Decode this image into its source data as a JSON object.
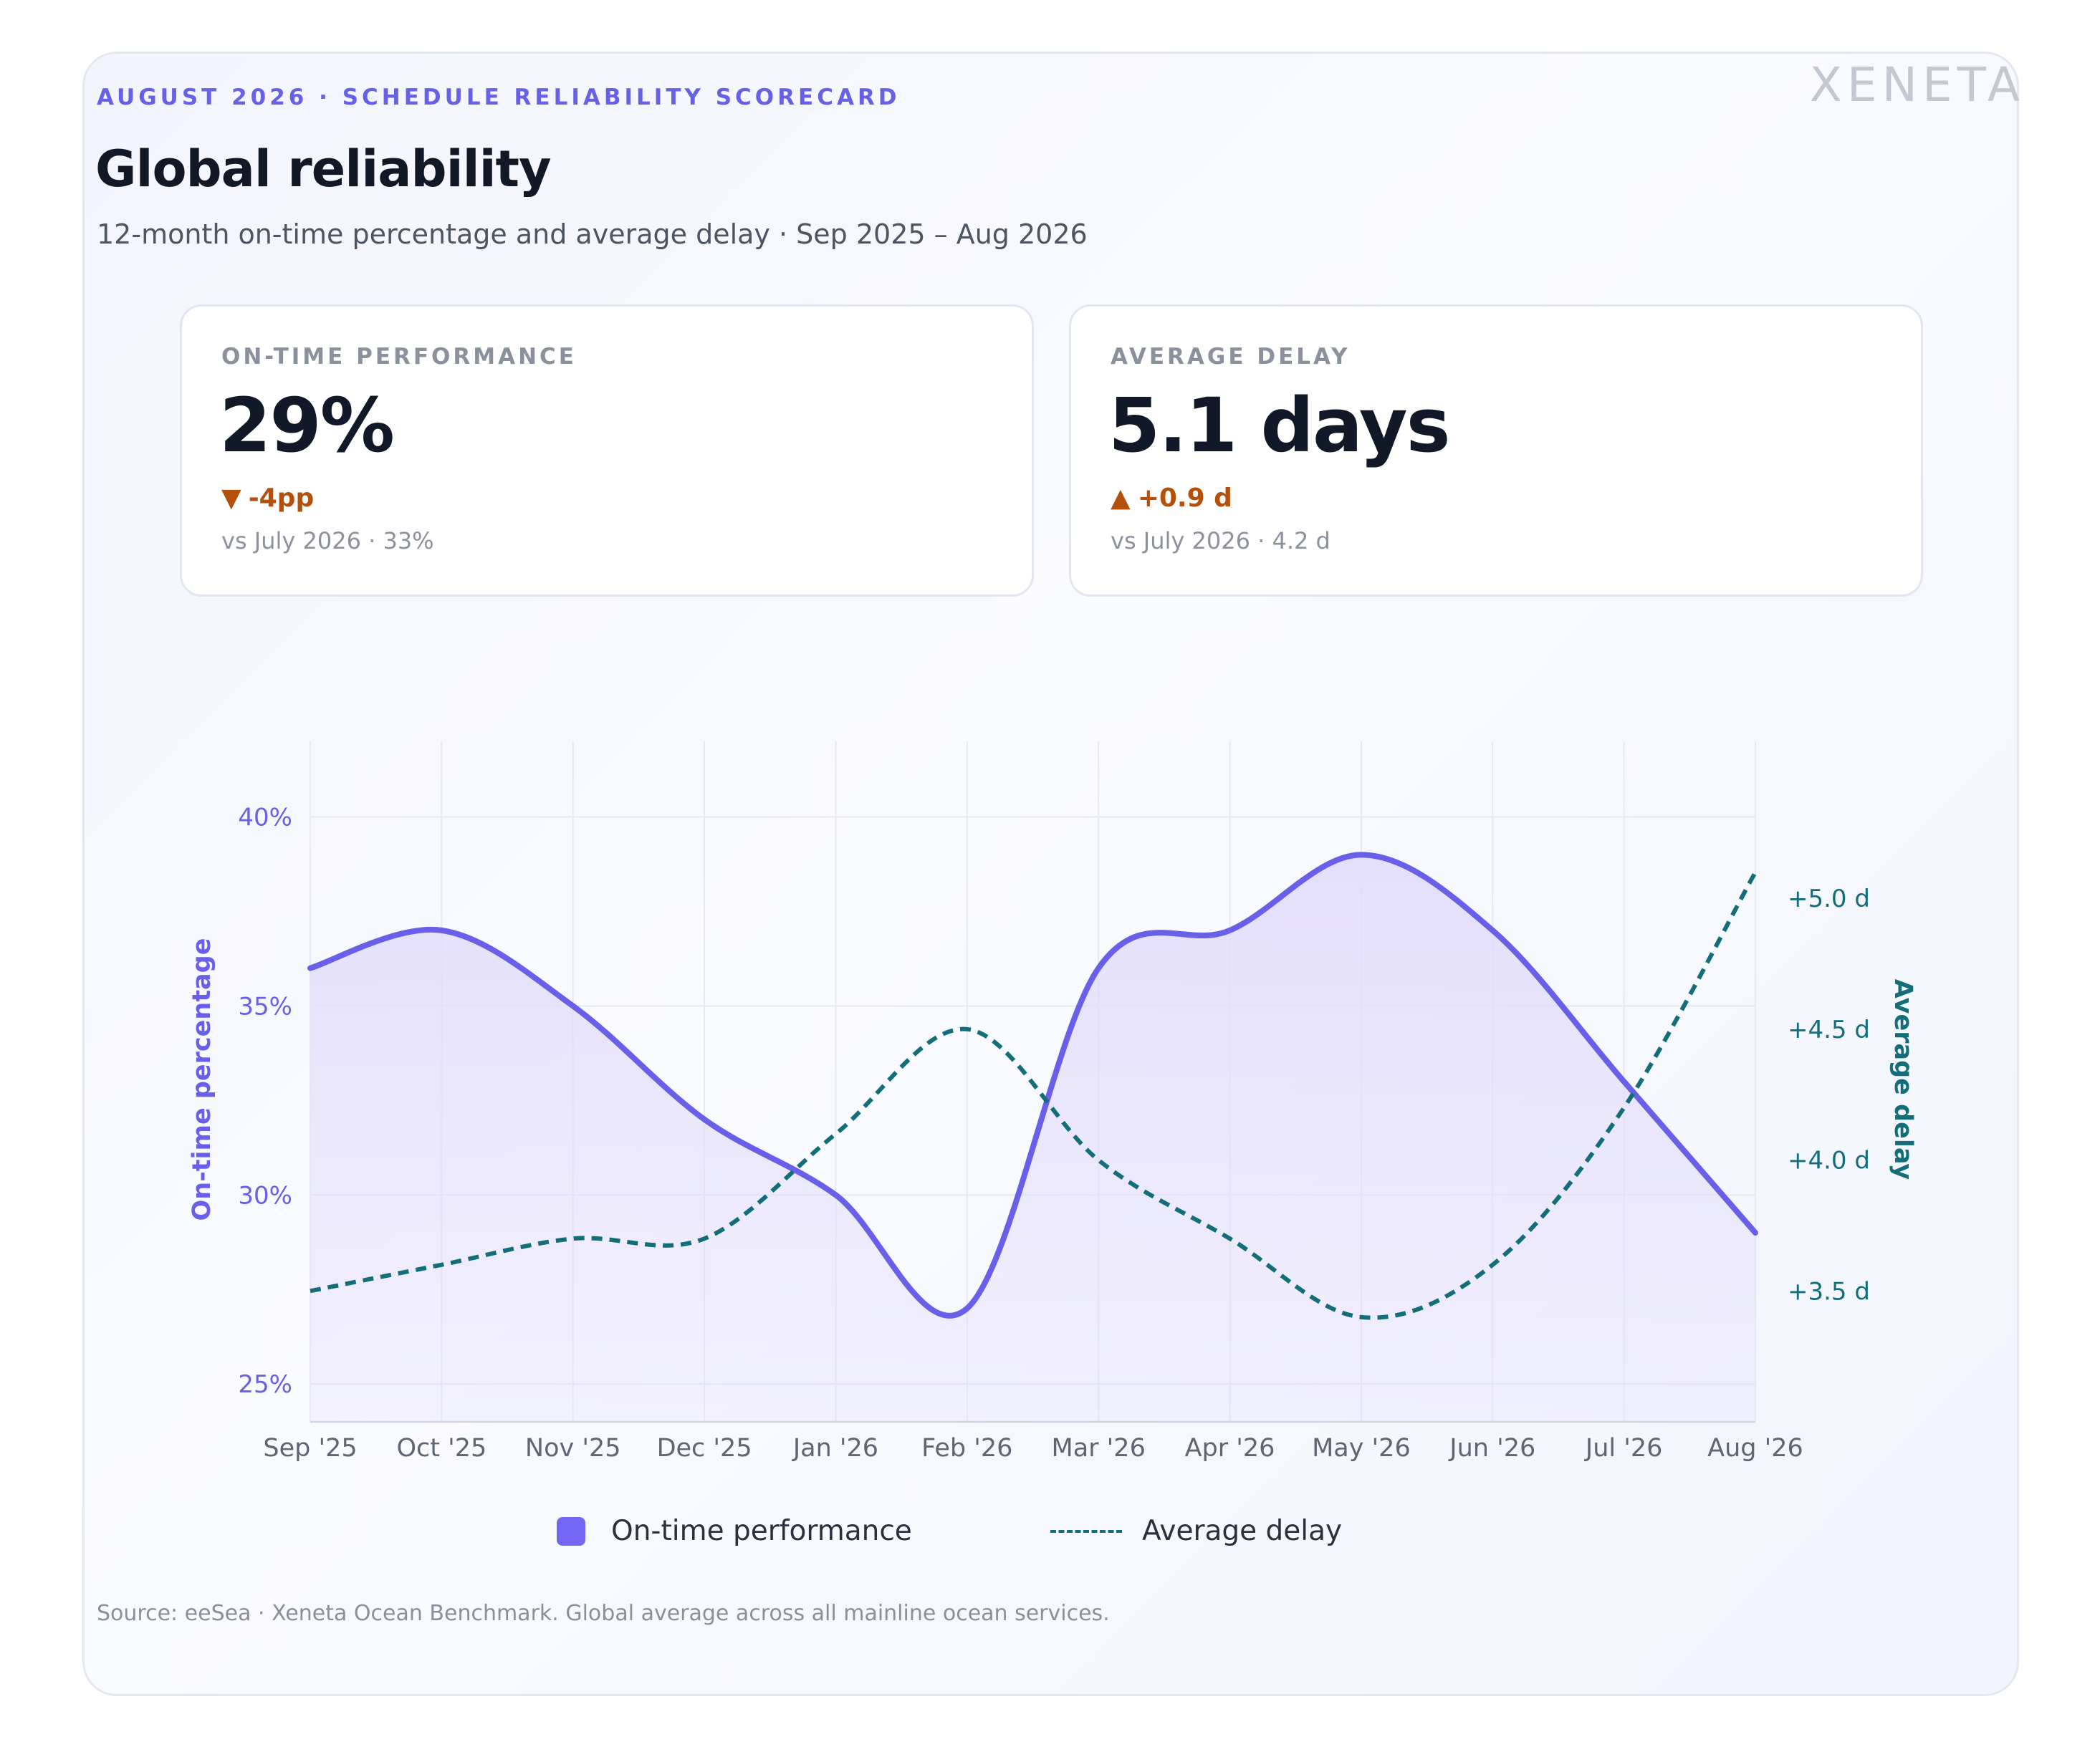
{
  "header": {
    "eyebrow": "AUGUST 2026 · SCHEDULE RELIABILITY SCORECARD",
    "logo": "XENETA",
    "title": "Global reliability",
    "subtitle": "12-month on-time percentage and average delay · Sep 2025 – Aug 2026"
  },
  "kpis": {
    "ontime": {
      "label": "ON-TIME PERFORMANCE",
      "value": "29%",
      "arrow": "▼",
      "delta": "-4pp",
      "compare": "vs July 2026 · 33%"
    },
    "delay": {
      "label": "AVERAGE DELAY",
      "value": "5.1 days",
      "arrow": "▲",
      "delta": "+0.9 d",
      "compare": "vs July 2026 · 4.2 d"
    }
  },
  "colors": {
    "ontime": "#6a5fe8",
    "ontime_fill": "#e3ddfb",
    "delay": "#136e7a",
    "delta_negative": "#b3500c"
  },
  "chart_data": {
    "type": "line",
    "categories": [
      "Sep '25",
      "Oct '25",
      "Nov '25",
      "Dec '25",
      "Jan '26",
      "Feb '26",
      "Mar '26",
      "Apr '26",
      "May '26",
      "Jun '26",
      "Jul '26",
      "Aug '26"
    ],
    "series": [
      {
        "name": "On-time performance",
        "axis": "left",
        "style": "solid-area",
        "values": [
          36,
          37,
          35,
          32,
          30,
          27,
          36,
          37,
          39,
          37,
          33,
          29
        ]
      },
      {
        "name": "Average delay",
        "axis": "right",
        "style": "dashed",
        "values": [
          3.5,
          3.6,
          3.7,
          3.7,
          4.1,
          4.5,
          4.0,
          3.7,
          3.4,
          3.6,
          4.2,
          5.1
        ]
      }
    ],
    "y_left": {
      "label": "On-time percentage",
      "range": [
        24,
        42
      ],
      "ticks": [
        25,
        30,
        35,
        40
      ],
      "tick_labels": [
        "25%",
        "30%",
        "35%",
        "40%"
      ]
    },
    "y_right": {
      "label": "Average delay",
      "range": [
        3.0,
        5.6
      ],
      "ticks": [
        3.5,
        4.0,
        4.5,
        5.0
      ],
      "tick_labels": [
        "+3.5 d",
        "+4.0 d",
        "+4.5 d",
        "+5.0 d"
      ]
    },
    "grid": true,
    "legend_position": "bottom"
  },
  "footer": {
    "source": "Source: eeSea · Xeneta Ocean Benchmark. Global average across all mainline ocean services."
  }
}
